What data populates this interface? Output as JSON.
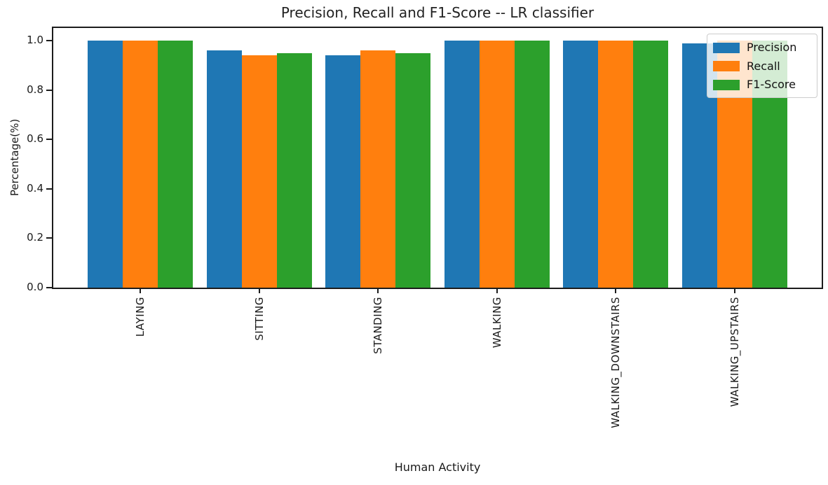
{
  "chart_data": {
    "type": "bar",
    "title": "Precision, Recall and F1-Score -- LR classifier",
    "xlabel": "Human Activity",
    "ylabel": "Percentage(%)",
    "categories": [
      "LAYING",
      "SITTING",
      "STANDING",
      "WALKING",
      "WALKING_DOWNSTAIRS",
      "WALKING_UPSTAIRS"
    ],
    "series": [
      {
        "name": "Precision",
        "color": "#1f77b4",
        "values": [
          1.0,
          0.96,
          0.94,
          1.0,
          1.0,
          0.99
        ]
      },
      {
        "name": "Recall",
        "color": "#ff7f0e",
        "values": [
          1.0,
          0.94,
          0.96,
          1.0,
          1.0,
          1.0
        ]
      },
      {
        "name": "F1-Score",
        "color": "#2ca02c",
        "values": [
          1.0,
          0.95,
          0.95,
          1.0,
          1.0,
          1.0
        ]
      }
    ],
    "ylim": [
      0.0,
      1.05
    ],
    "yticks": [
      0.0,
      0.2,
      0.4,
      0.6,
      0.8,
      1.0
    ],
    "legend_position": "upper right",
    "grid": false,
    "bar_group_layout": "grouped"
  }
}
